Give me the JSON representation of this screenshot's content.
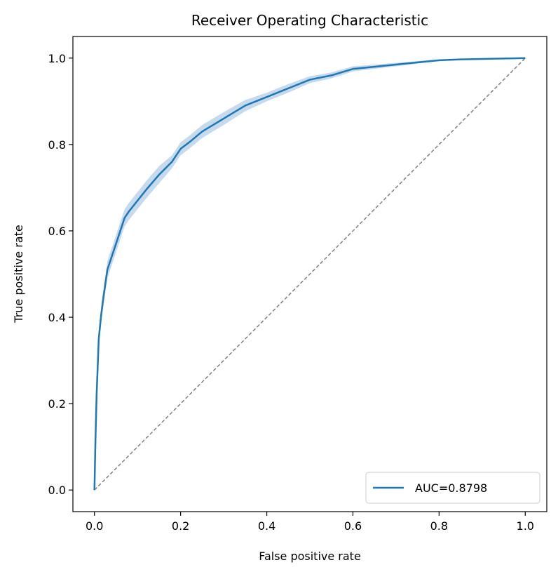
{
  "chart_data": {
    "type": "line",
    "title": "Receiver Operating Characteristic",
    "x_label": "False positive rate",
    "y_label": "True positive rate",
    "xlim": [
      -0.05,
      1.05
    ],
    "ylim": [
      -0.05,
      1.05
    ],
    "xticks": [
      {
        "value": 0,
        "label": "0.0"
      },
      0.2,
      0.4,
      0.6,
      0.8,
      {
        "value": 1,
        "label": "1.0"
      }
    ],
    "yticks": [
      {
        "value": 0,
        "label": "0.0"
      },
      0.2,
      0.4,
      0.6,
      0.8,
      {
        "value": 1,
        "label": "1.0"
      }
    ],
    "grid": false,
    "legend": "lower right",
    "series": [
      {
        "name": "AUC=0.8798",
        "color": "#1f77b4",
        "band_color": "#aecbe6",
        "x": [
          0,
          0.002,
          0.005,
          0.01,
          0.015,
          0.02,
          0.03,
          0.04,
          0.05,
          0.06,
          0.07,
          0.08,
          0.1,
          0.12,
          0.15,
          0.18,
          0.2,
          0.22,
          0.25,
          0.3,
          0.35,
          0.4,
          0.45,
          0.5,
          0.55,
          0.6,
          0.65,
          0.7,
          0.75,
          0.8,
          0.85,
          0.9,
          0.95,
          1.0
        ],
        "values": [
          0,
          0.1,
          0.22,
          0.35,
          0.4,
          0.44,
          0.51,
          0.54,
          0.57,
          0.6,
          0.63,
          0.645,
          0.67,
          0.695,
          0.73,
          0.76,
          0.79,
          0.805,
          0.83,
          0.86,
          0.89,
          0.91,
          0.93,
          0.95,
          0.96,
          0.975,
          0.98,
          0.985,
          0.99,
          0.995,
          0.997,
          0.998,
          0.999,
          1.0
        ],
        "lower": [
          0,
          0.08,
          0.2,
          0.33,
          0.38,
          0.42,
          0.49,
          0.52,
          0.55,
          0.58,
          0.61,
          0.625,
          0.65,
          0.675,
          0.71,
          0.745,
          0.775,
          0.79,
          0.815,
          0.845,
          0.877,
          0.9,
          0.92,
          0.942,
          0.953,
          0.969,
          0.975,
          0.981,
          0.987,
          0.993,
          0.996,
          0.997,
          0.998,
          1.0
        ],
        "upper": [
          0,
          0.12,
          0.24,
          0.37,
          0.42,
          0.46,
          0.53,
          0.56,
          0.59,
          0.62,
          0.65,
          0.665,
          0.69,
          0.715,
          0.75,
          0.775,
          0.805,
          0.82,
          0.845,
          0.875,
          0.903,
          0.92,
          0.94,
          0.958,
          0.967,
          0.981,
          0.985,
          0.989,
          0.993,
          0.997,
          0.998,
          0.999,
          1.0,
          1.0
        ]
      }
    ],
    "reference_line": {
      "color": "#808080",
      "x": [
        0,
        1
      ],
      "y": [
        0,
        1
      ]
    }
  }
}
